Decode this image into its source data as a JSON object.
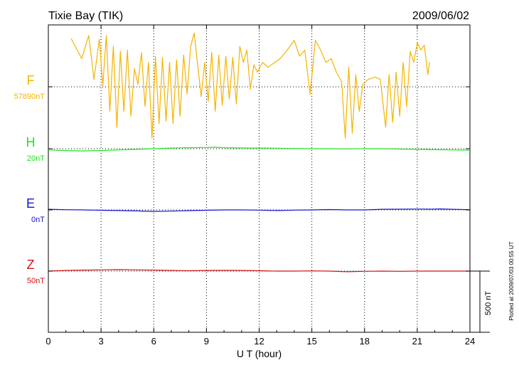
{
  "chart_data": {
    "type": "line",
    "title": "Tixie Bay (TIK)",
    "date": "2009/06/02",
    "xlabel": "U T (hour)",
    "xlim": [
      0,
      24
    ],
    "xticks": [
      "0",
      "3",
      "6",
      "9",
      "12",
      "15",
      "18",
      "21",
      "24"
    ],
    "plotted_note": "Plotted at 2009/07/03 00:55 UT",
    "scale_label": "500 nT",
    "series": [
      {
        "name": "F",
        "baseline": "57890nT",
        "color": "#f5b400",
        "points": [
          [
            1.3,
            395
          ],
          [
            1.9,
            230
          ],
          [
            2.3,
            420
          ],
          [
            2.6,
            60
          ],
          [
            2.9,
            390
          ],
          [
            3.1,
            10
          ],
          [
            3.3,
            420
          ],
          [
            3.5,
            -200
          ],
          [
            3.7,
            330
          ],
          [
            3.9,
            -330
          ],
          [
            4.1,
            290
          ],
          [
            4.3,
            -200
          ],
          [
            4.5,
            300
          ],
          [
            4.7,
            -240
          ],
          [
            4.9,
            150
          ],
          [
            5.1,
            20
          ],
          [
            5.3,
            280
          ],
          [
            5.5,
            -160
          ],
          [
            5.7,
            200
          ],
          [
            5.9,
            -420
          ],
          [
            6.1,
            250
          ],
          [
            6.3,
            -300
          ],
          [
            6.5,
            240
          ],
          [
            6.7,
            -280
          ],
          [
            6.9,
            200
          ],
          [
            7.1,
            -300
          ],
          [
            7.3,
            220
          ],
          [
            7.5,
            -240
          ],
          [
            7.7,
            260
          ],
          [
            7.9,
            -60
          ],
          [
            8.1,
            330
          ],
          [
            8.3,
            440
          ],
          [
            8.5,
            180
          ],
          [
            8.7,
            -80
          ],
          [
            8.9,
            200
          ],
          [
            9.1,
            -120
          ],
          [
            9.3,
            280
          ],
          [
            9.5,
            -200
          ],
          [
            9.7,
            260
          ],
          [
            9.9,
            -150
          ],
          [
            10.1,
            250
          ],
          [
            10.3,
            -100
          ],
          [
            10.5,
            240
          ],
          [
            10.7,
            -140
          ],
          [
            10.9,
            330
          ],
          [
            11.1,
            200
          ],
          [
            11.3,
            300
          ],
          [
            11.5,
            -20
          ],
          [
            11.7,
            180
          ],
          [
            11.9,
            120
          ],
          [
            12.2,
            200
          ],
          [
            12.5,
            160
          ],
          [
            12.8,
            190
          ],
          [
            13.2,
            230
          ],
          [
            13.6,
            300
          ],
          [
            14.0,
            380
          ],
          [
            14.3,
            250
          ],
          [
            14.6,
            300
          ],
          [
            14.9,
            -60
          ],
          [
            15.2,
            380
          ],
          [
            15.5,
            300
          ],
          [
            15.8,
            200
          ],
          [
            16.1,
            230
          ],
          [
            16.4,
            120
          ],
          [
            16.7,
            40
          ],
          [
            16.9,
            -420
          ],
          [
            17.1,
            160
          ],
          [
            17.3,
            -380
          ],
          [
            17.5,
            100
          ],
          [
            17.7,
            -200
          ],
          [
            17.9,
            20
          ],
          [
            18.2,
            60
          ],
          [
            18.6,
            80
          ],
          [
            18.9,
            60
          ],
          [
            19.2,
            -330
          ],
          [
            19.4,
            100
          ],
          [
            19.6,
            -290
          ],
          [
            19.8,
            120
          ],
          [
            20.0,
            -240
          ],
          [
            20.2,
            200
          ],
          [
            20.4,
            -160
          ],
          [
            20.6,
            290
          ],
          [
            20.8,
            200
          ],
          [
            21.0,
            360
          ],
          [
            21.2,
            300
          ],
          [
            21.4,
            340
          ],
          [
            21.6,
            100
          ],
          [
            21.7,
            200
          ]
        ]
      },
      {
        "name": "H",
        "baseline": "20nT",
        "color": "#1ee31e",
        "points": [
          [
            0,
            -10
          ],
          [
            1,
            -15
          ],
          [
            2,
            -18
          ],
          [
            3,
            -15
          ],
          [
            4,
            -10
          ],
          [
            5,
            -5
          ],
          [
            6,
            0
          ],
          [
            7,
            5
          ],
          [
            8,
            8
          ],
          [
            9,
            10
          ],
          [
            9.5,
            12
          ],
          [
            10,
            8
          ],
          [
            11,
            6
          ],
          [
            12,
            5
          ],
          [
            13,
            4
          ],
          [
            14,
            2
          ],
          [
            15,
            0
          ],
          [
            16,
            0
          ],
          [
            17,
            -2
          ],
          [
            18,
            0
          ],
          [
            19,
            0
          ],
          [
            20,
            -3
          ],
          [
            21,
            -5
          ],
          [
            22,
            -8
          ],
          [
            23,
            -10
          ],
          [
            24,
            -12
          ]
        ]
      },
      {
        "name": "E",
        "baseline": "0nT",
        "color": "#1414d2",
        "points": [
          [
            0,
            5
          ],
          [
            1,
            2
          ],
          [
            2,
            0
          ],
          [
            3,
            -3
          ],
          [
            4,
            -5
          ],
          [
            5,
            -8
          ],
          [
            6,
            -12
          ],
          [
            7,
            -10
          ],
          [
            8,
            -6
          ],
          [
            9,
            -3
          ],
          [
            10,
            0
          ],
          [
            11,
            0
          ],
          [
            12,
            -2
          ],
          [
            13,
            -5
          ],
          [
            14,
            -2
          ],
          [
            15,
            0
          ],
          [
            16,
            3
          ],
          [
            17,
            0
          ],
          [
            18,
            0
          ],
          [
            19,
            5
          ],
          [
            20,
            6
          ],
          [
            21,
            7
          ],
          [
            21.8,
            6
          ],
          [
            22.3,
            8
          ],
          [
            23,
            5
          ],
          [
            24,
            2
          ]
        ]
      },
      {
        "name": "Z",
        "baseline": "50nT",
        "color": "#d21414",
        "points": [
          [
            0,
            0
          ],
          [
            1,
            5
          ],
          [
            2,
            8
          ],
          [
            3,
            10
          ],
          [
            4,
            12
          ],
          [
            5,
            10
          ],
          [
            6,
            8
          ],
          [
            7,
            5
          ],
          [
            8,
            3
          ],
          [
            9,
            5
          ],
          [
            10,
            6
          ],
          [
            11,
            5
          ],
          [
            12,
            3
          ],
          [
            13,
            0
          ],
          [
            14,
            0
          ],
          [
            15,
            2
          ],
          [
            16,
            0
          ],
          [
            17,
            -5
          ],
          [
            18,
            -2
          ],
          [
            19,
            0
          ],
          [
            20,
            -2
          ],
          [
            21,
            0
          ],
          [
            21.6,
            0
          ],
          [
            22,
            0
          ],
          [
            23,
            0
          ],
          [
            24,
            0
          ]
        ]
      }
    ]
  }
}
